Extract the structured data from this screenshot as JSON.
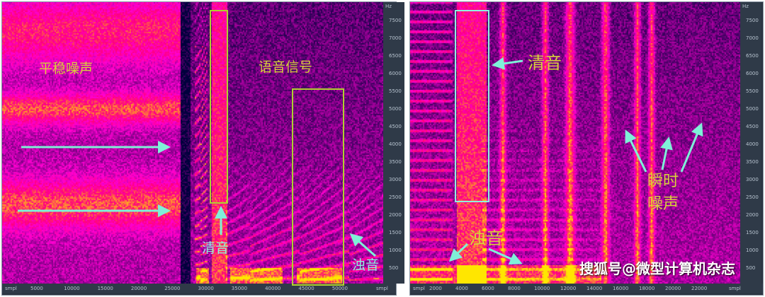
{
  "left_panel": {
    "x_ticks": [
      "smpl",
      "5000",
      "10000",
      "15000",
      "20000",
      "25000",
      "30000",
      "35000",
      "40000",
      "45000",
      "50000",
      "smpl"
    ],
    "y_unit": "Hz",
    "y_ticks": [
      "7500",
      "7000",
      "6500",
      "6000",
      "5500",
      "5000",
      "4500",
      "4000",
      "3500",
      "3000",
      "2500",
      "2000",
      "1500",
      "1000",
      "500"
    ],
    "labels": {
      "stationary_noise": "平稳噪声",
      "speech_signal": "语音信号",
      "unvoiced": "清音",
      "voiced": "浊音"
    }
  },
  "right_panel": {
    "x_ticks": [
      "smpl",
      "2000",
      "4000",
      "6000",
      "8000",
      "10000",
      "12000",
      "14000",
      "16000",
      "18000",
      "20000",
      "22000",
      "smpl"
    ],
    "y_unit": "Hz",
    "y_ticks": [
      "7500",
      "7000",
      "6500",
      "6000",
      "5500",
      "5000",
      "4500",
      "4000",
      "3500",
      "3000",
      "2500",
      "2000",
      "1500",
      "1000",
      "500"
    ],
    "labels": {
      "unvoiced": "清音",
      "voiced": "浊音",
      "transient_noise_1": "瞬时",
      "transient_noise_2": "噪声"
    }
  },
  "colors": {
    "box_left": "#b0d030",
    "box_right": "#90f0e0",
    "arrow": "#7ff0d8",
    "label": "#d8d23a"
  },
  "watermark": "搜狐号@微型计算机杂志"
}
